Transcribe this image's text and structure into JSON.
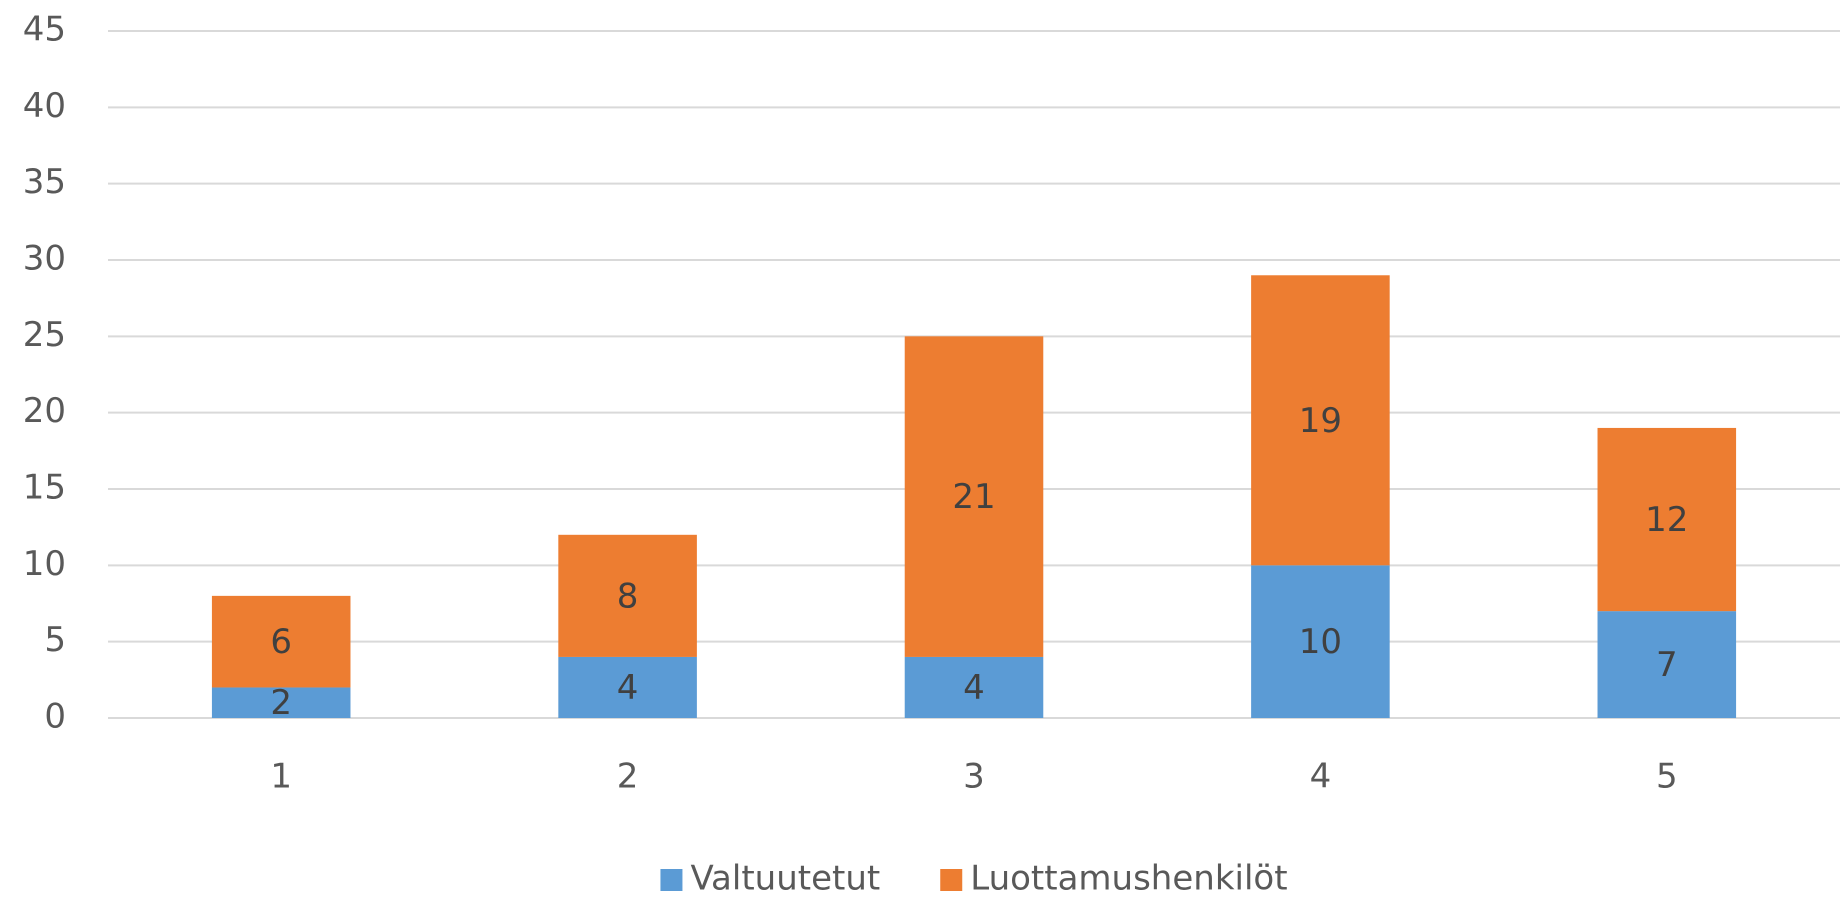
{
  "chart_data": {
    "type": "stacked_bar",
    "categories": [
      "1",
      "2",
      "3",
      "4",
      "5"
    ],
    "series": [
      {
        "name": "Valtuutetut",
        "color": "#5b9bd5",
        "values": [
          2,
          4,
          4,
          10,
          7
        ]
      },
      {
        "name": "Luottamushenkilöt",
        "color": "#ed7d31",
        "values": [
          6,
          8,
          21,
          19,
          12
        ]
      }
    ],
    "ylim": [
      0,
      45
    ],
    "yticks": [
      0,
      5,
      10,
      15,
      20,
      25,
      30,
      35,
      40,
      45
    ],
    "grid": true,
    "legend": "bottom"
  }
}
